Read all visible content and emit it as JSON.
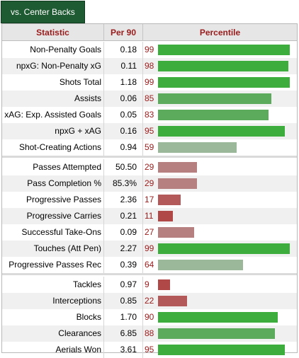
{
  "tab": {
    "label": "vs. Center Backs"
  },
  "header": {
    "statistic": "Statistic",
    "per90": "Per 90",
    "percentile": "Percentile"
  },
  "colors": {
    "high": "#3dad3d",
    "mid_high": "#5cab5c",
    "mid": "#9bb99a",
    "low_mid": "#b78080",
    "low": "#b35959",
    "very_low": "#b04848"
  },
  "groups": [
    {
      "rows": [
        {
          "stat": "Non-Penalty Goals",
          "per90": "0.18",
          "percentile": "99",
          "pct": 99
        },
        {
          "stat": "npxG: Non-Penalty xG",
          "per90": "0.11",
          "percentile": "98",
          "pct": 98
        },
        {
          "stat": "Shots Total",
          "per90": "1.18",
          "percentile": "99",
          "pct": 99
        },
        {
          "stat": "Assists",
          "per90": "0.06",
          "percentile": "85",
          "pct": 85
        },
        {
          "stat": "xAG: Exp. Assisted Goals",
          "per90": "0.05",
          "percentile": "83",
          "pct": 83
        },
        {
          "stat": "npxG + xAG",
          "per90": "0.16",
          "percentile": "95",
          "pct": 95
        },
        {
          "stat": "Shot-Creating Actions",
          "per90": "0.94",
          "percentile": "59",
          "pct": 59
        }
      ]
    },
    {
      "rows": [
        {
          "stat": "Passes Attempted",
          "per90": "50.50",
          "percentile": "29",
          "pct": 29
        },
        {
          "stat": "Pass Completion %",
          "per90": "85.3%",
          "percentile": "29",
          "pct": 29
        },
        {
          "stat": "Progressive Passes",
          "per90": "2.36",
          "percentile": "17",
          "pct": 17
        },
        {
          "stat": "Progressive Carries",
          "per90": "0.21",
          "percentile": "11",
          "pct": 11
        },
        {
          "stat": "Successful Take-Ons",
          "per90": "0.09",
          "percentile": "27",
          "pct": 27
        },
        {
          "stat": "Touches (Att Pen)",
          "per90": "2.27",
          "percentile": "99",
          "pct": 99
        },
        {
          "stat": "Progressive Passes Rec",
          "per90": "0.39",
          "percentile": "64",
          "pct": 64
        }
      ]
    },
    {
      "rows": [
        {
          "stat": "Tackles",
          "per90": "0.97",
          "percentile": "9",
          "pct": 9
        },
        {
          "stat": "Interceptions",
          "per90": "0.85",
          "percentile": "22",
          "pct": 22
        },
        {
          "stat": "Blocks",
          "per90": "1.70",
          "percentile": "90",
          "pct": 90
        },
        {
          "stat": "Clearances",
          "per90": "6.85",
          "percentile": "88",
          "pct": 88
        },
        {
          "stat": "Aerials Won",
          "per90": "3.61",
          "percentile": "95",
          "pct": 95
        }
      ]
    }
  ]
}
